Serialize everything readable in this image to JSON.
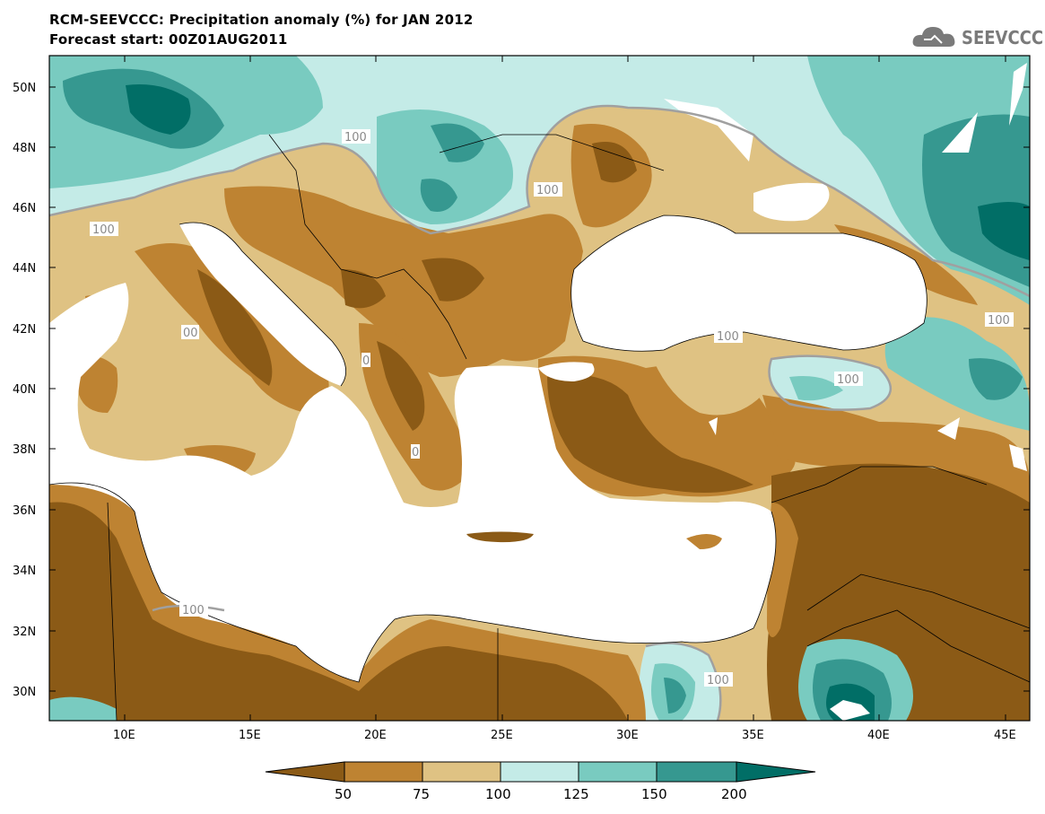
{
  "title": {
    "line1": "RCM-SEEVCCC: Precipitation anomaly (%) for JAN 2012",
    "line2": "Forecast start: 00Z01AUG2011"
  },
  "logo": {
    "text": "SEEVCCC",
    "icon": "cloud-icon"
  },
  "map": {
    "lat_labels": [
      "50N",
      "48N",
      "46N",
      "44N",
      "42N",
      "40N",
      "38N",
      "36N",
      "34N",
      "32N",
      "30N"
    ],
    "lon_labels": [
      "10E",
      "15E",
      "20E",
      "25E",
      "30E",
      "35E",
      "40E",
      "45E"
    ],
    "contour_label": "100",
    "contour_labels_partial": [
      "00",
      "0",
      "0"
    ]
  },
  "colorbar": {
    "ticks": [
      "50",
      "75",
      "100",
      "125",
      "150",
      "200"
    ],
    "colors": [
      "#8b5a16",
      "#be8332",
      "#dfc283",
      "#c4ebe7",
      "#79cbc0",
      "#369890",
      "#016e66"
    ]
  },
  "colors": {
    "sea": "#ffffff",
    "very_dry": "#8b5a16",
    "dry": "#be8332",
    "slightly_dry": "#dfc283",
    "slightly_wet": "#c4ebe7",
    "wet": "#79cbc0",
    "very_wet": "#369890",
    "extreme_wet": "#016e66"
  }
}
